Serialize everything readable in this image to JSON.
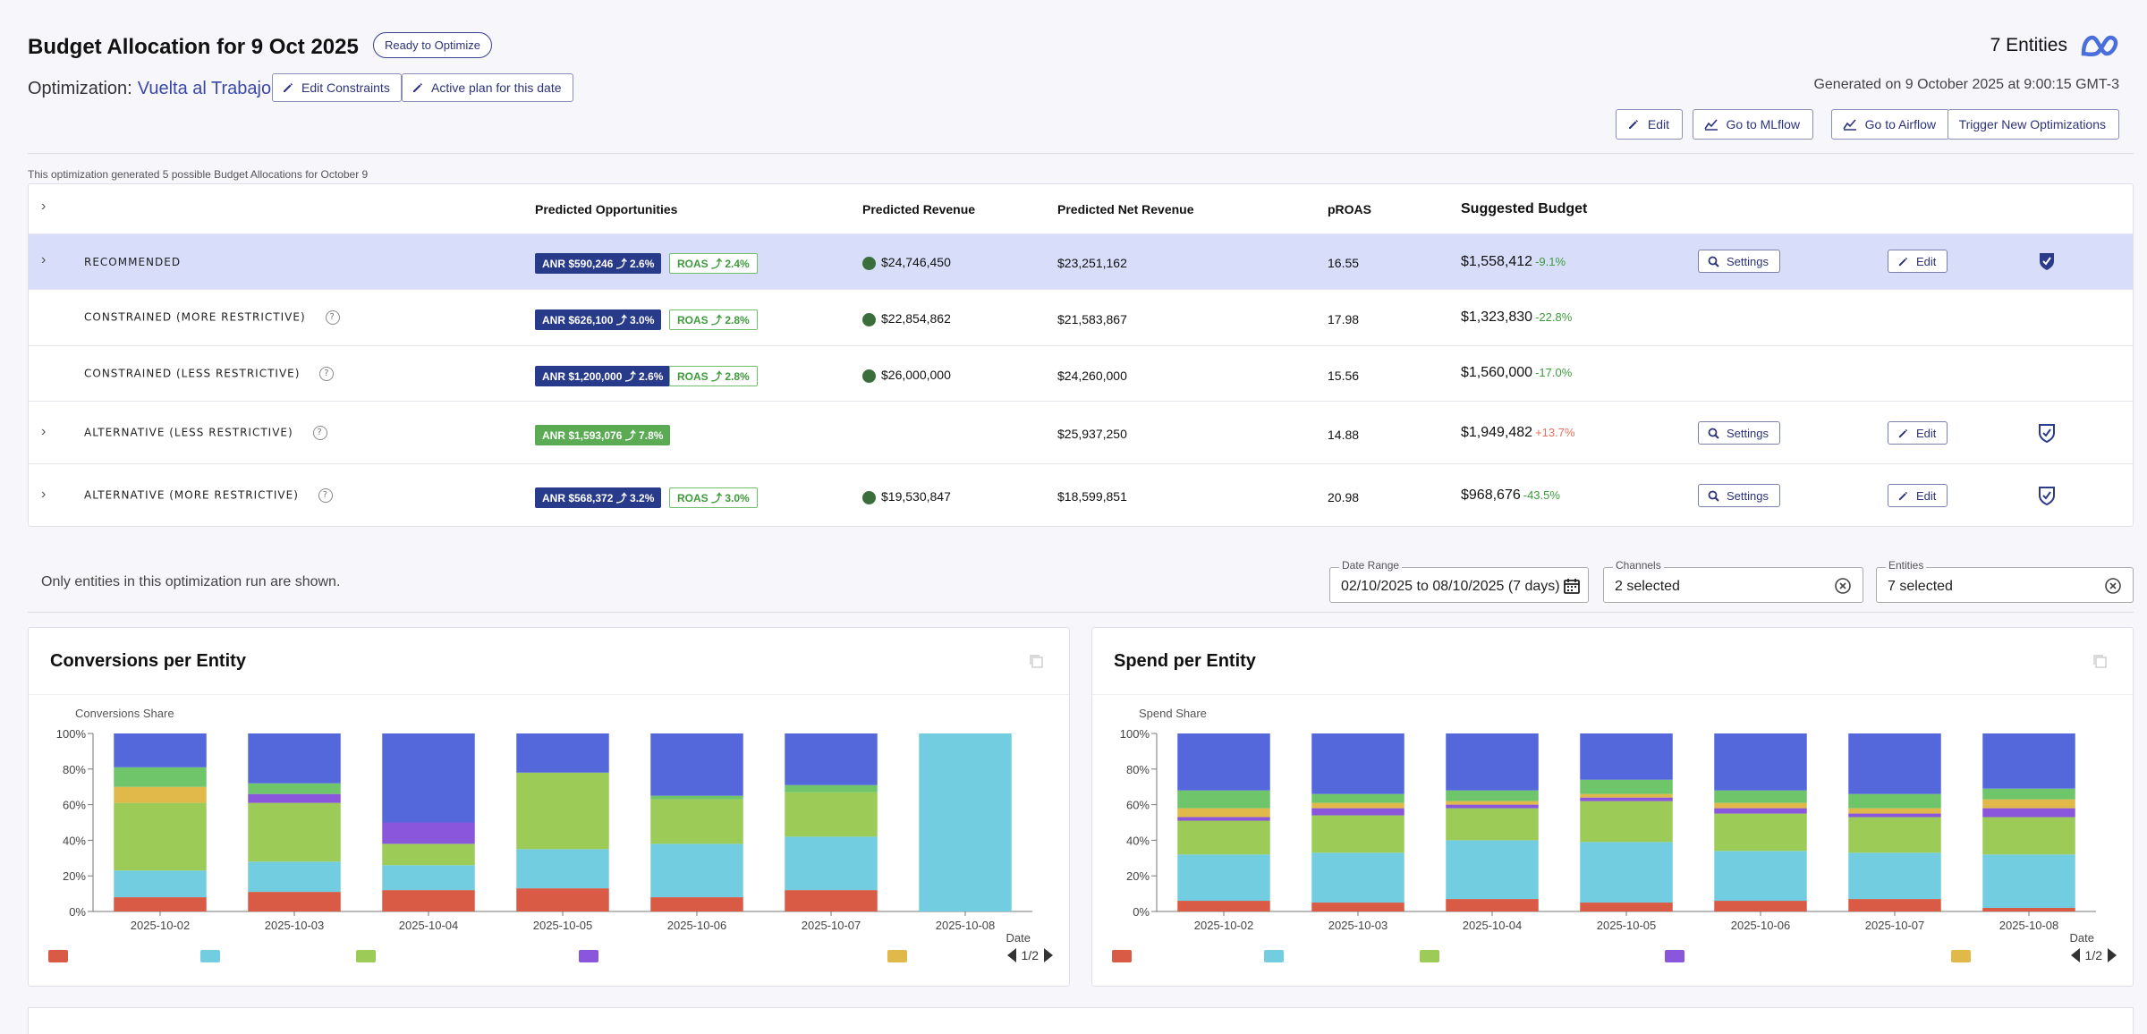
{
  "header": {
    "title": "Budget Allocation for 9 Oct 2025",
    "status": "Ready to Optimize",
    "optimization_label": "Optimization:",
    "optimization_name": "Vuelta al Trabajo",
    "edit_constraints": "Edit Constraints",
    "active_plan": "Active plan for this date",
    "entities_count": "7 Entities",
    "generated": "Generated on 9 October 2025 at 9:00:15 GMT-3",
    "actions": {
      "edit": "Edit",
      "mlflow": "Go to MLflow",
      "airflow": "Go to Airflow",
      "trigger": "Trigger New Optimizations"
    },
    "brand_color": "#4a6fdc"
  },
  "note": "This optimization generated 5 possible Budget Allocations for October 9",
  "table": {
    "columns": {
      "opportunities": "Predicted Opportunities",
      "revenue": "Predicted Revenue",
      "net_revenue": "Predicted Net Revenue",
      "proas": "pROAS",
      "budget": "Suggested Budget"
    },
    "rows": [
      {
        "name": "RECOMMENDED",
        "anr": "ANR $590,246  ⤴  2.6%",
        "roas": "ROAS  ⤴  2.4%",
        "revenue": "$24,746,450",
        "net": "$23,251,162",
        "proas": "16.55",
        "budget": "$1,558,412",
        "change": "-9.1%",
        "settings": "Settings",
        "edit": "Edit"
      },
      {
        "name": "CONSTRAINED (MORE RESTRICTIVE)",
        "anr": "ANR $626,100  ⤴  3.0%",
        "roas": "ROAS  ⤴  2.8%",
        "revenue": "$22,854,862",
        "net": "$21,583,867",
        "proas": "17.98",
        "budget": "$1,323,830",
        "change": "-22.8%"
      },
      {
        "name": "CONSTRAINED (LESS RESTRICTIVE)",
        "anr": "ANR $1,200,000 ⤴ 2.6%",
        "roas": "ROAS  ⤴  2.8%",
        "revenue": "$26,000,000",
        "net": "$24,260,000",
        "proas": "15.56",
        "budget": "$1,560,000",
        "change": "-17.0%"
      },
      {
        "name": "ALTERNATIVE (LESS RESTRICTIVE)",
        "anr": "ANR $1,593,076  ⤴  7.8%",
        "roas": "",
        "revenue": "",
        "net": "$25,937,250",
        "proas": "14.88",
        "budget": "$1,949,482",
        "change": "+13.7%",
        "settings": "Settings",
        "edit": "Edit"
      },
      {
        "name": "ALTERNATIVE (MORE RESTRICTIVE)",
        "anr": "ANR $568,372  ⤴  3.2%",
        "roas": "ROAS  ⤴  3.0%",
        "revenue": "$19,530,847",
        "net": "$18,599,851",
        "proas": "20.98",
        "budget": "$968,676",
        "change": "-43.5%",
        "settings": "Settings",
        "edit": "Edit"
      }
    ]
  },
  "filters": {
    "note": "Only entities in this optimization run are shown.",
    "date_label": "Date Range",
    "date_value": "02/10/2025 to 08/10/2025 (7 days)",
    "channels_label": "Channels",
    "channels_value": "2 selected",
    "entities_label": "Entities",
    "entities_value": "7 selected"
  },
  "chart_data": [
    {
      "type": "bar",
      "stacked": true,
      "title": "Conversions per Entity",
      "ylabel": "Conversions Share",
      "xlabel": "Date",
      "ylim": [
        0,
        100
      ],
      "yticks": [
        "0%",
        "20%",
        "40%",
        "60%",
        "80%",
        "100%"
      ],
      "categories": [
        "2025-10-02",
        "2025-10-03",
        "2025-10-04",
        "2025-10-05",
        "2025-10-06",
        "2025-10-07",
        "2025-10-08"
      ],
      "series": [
        {
          "color": "#d95a45",
          "values": [
            8,
            11,
            12,
            13,
            8,
            12,
            0
          ]
        },
        {
          "color": "#73cde0",
          "values": [
            15,
            17,
            14,
            22,
            30,
            30,
            100
          ]
        },
        {
          "color": "#9ccb58",
          "values": [
            38,
            33,
            12,
            43,
            25,
            25,
            0
          ]
        },
        {
          "color": "#e0b94a",
          "values": [
            9,
            0,
            0,
            0,
            0,
            0,
            0
          ]
        },
        {
          "color": "#8a56dc",
          "values": [
            0,
            5,
            12,
            0,
            0,
            0,
            0
          ]
        },
        {
          "color": "#6fc66a",
          "values": [
            11,
            6,
            0,
            0,
            2,
            4,
            0
          ]
        },
        {
          "color": "#5468dc",
          "values": [
            19,
            28,
            50,
            22,
            35,
            29,
            0
          ]
        }
      ],
      "pager": "1/2"
    },
    {
      "type": "bar",
      "stacked": true,
      "title": "Spend per Entity",
      "ylabel": "Spend Share",
      "xlabel": "Date",
      "ylim": [
        0,
        100
      ],
      "yticks": [
        "0%",
        "20%",
        "40%",
        "60%",
        "80%",
        "100%"
      ],
      "categories": [
        "2025-10-02",
        "2025-10-03",
        "2025-10-04",
        "2025-10-05",
        "2025-10-06",
        "2025-10-07",
        "2025-10-08"
      ],
      "series": [
        {
          "color": "#d95a45",
          "values": [
            6,
            5,
            7,
            5,
            6,
            7,
            2
          ]
        },
        {
          "color": "#73cde0",
          "values": [
            26,
            28,
            33,
            34,
            28,
            26,
            30
          ]
        },
        {
          "color": "#9ccb58",
          "values": [
            19,
            21,
            18,
            23,
            21,
            20,
            21
          ]
        },
        {
          "color": "#8a56dc",
          "values": [
            2,
            4,
            2,
            2,
            3,
            2,
            5
          ]
        },
        {
          "color": "#e0b94a",
          "values": [
            5,
            3,
            2,
            2,
            3,
            3,
            5
          ]
        },
        {
          "color": "#6fc66a",
          "values": [
            10,
            5,
            6,
            8,
            7,
            8,
            6
          ]
        },
        {
          "color": "#5468dc",
          "values": [
            32,
            34,
            32,
            26,
            32,
            34,
            31
          ]
        }
      ],
      "pager": "1/2"
    }
  ]
}
